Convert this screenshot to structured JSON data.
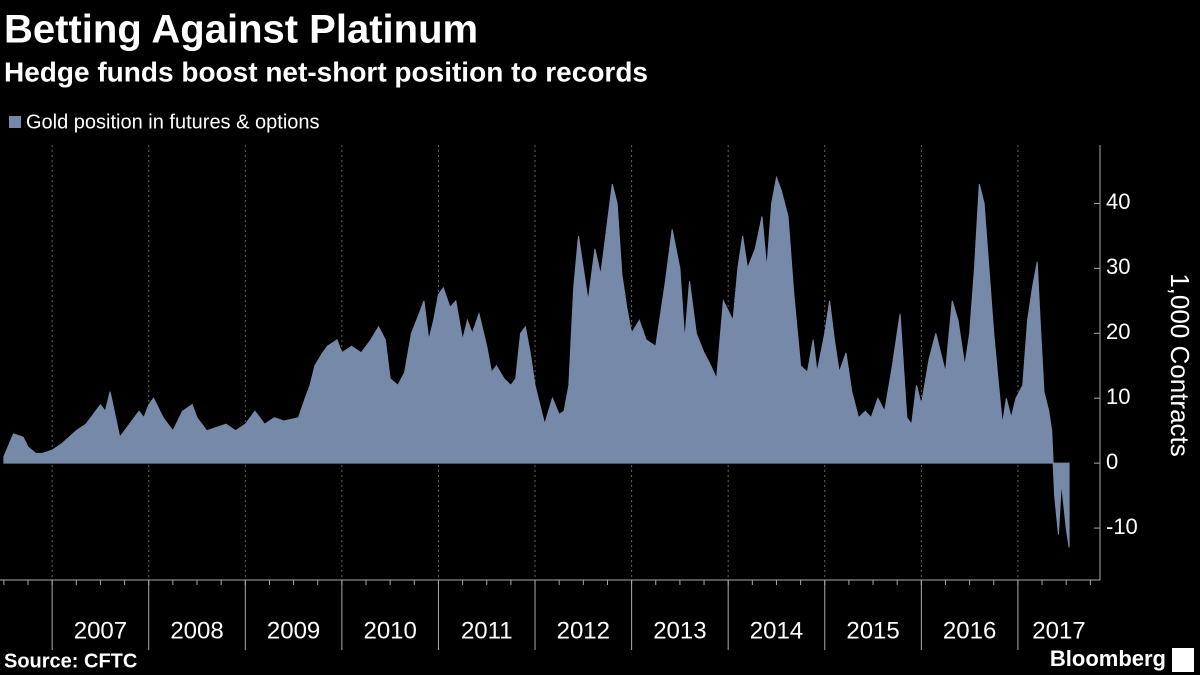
{
  "chart_data": {
    "type": "area",
    "title": "Betting Against Platinum",
    "subtitle": "Hedge funds boost net-short position to records",
    "source": "Source: CFTC",
    "brand": "Bloomberg",
    "y_label": "1,000 Contracts",
    "x": [
      2006.5,
      2006.6,
      2006.7,
      2006.75,
      2006.83,
      2006.9,
      2007.0,
      2007.1,
      2007.25,
      2007.35,
      2007.45,
      2007.5,
      2007.55,
      2007.6,
      2007.7,
      2007.8,
      2007.9,
      2007.95,
      2008.0,
      2008.05,
      2008.15,
      2008.25,
      2008.35,
      2008.45,
      2008.5,
      2008.6,
      2008.7,
      2008.8,
      2008.9,
      2009.0,
      2009.1,
      2009.2,
      2009.3,
      2009.4,
      2009.55,
      2009.62,
      2009.67,
      2009.72,
      2009.8,
      2009.85,
      2009.95,
      2010.0,
      2010.1,
      2010.2,
      2010.3,
      2010.38,
      2010.45,
      2010.5,
      2010.58,
      2010.65,
      2010.72,
      2010.8,
      2010.85,
      2010.9,
      2010.95,
      2011.0,
      2011.05,
      2011.12,
      2011.18,
      2011.25,
      2011.3,
      2011.35,
      2011.42,
      2011.5,
      2011.55,
      2011.6,
      2011.68,
      2011.75,
      2011.8,
      2011.85,
      2011.9,
      2011.95,
      2012.0,
      2012.05,
      2012.1,
      2012.18,
      2012.25,
      2012.3,
      2012.35,
      2012.4,
      2012.45,
      2012.5,
      2012.55,
      2012.62,
      2012.68,
      2012.74,
      2012.8,
      2012.85,
      2012.9,
      2012.95,
      2013.0,
      2013.08,
      2013.15,
      2013.25,
      2013.35,
      2013.42,
      2013.5,
      2013.55,
      2013.6,
      2013.67,
      2013.75,
      2013.82,
      2013.88,
      2013.95,
      2014.05,
      2014.1,
      2014.15,
      2014.2,
      2014.28,
      2014.35,
      2014.4,
      2014.45,
      2014.5,
      2014.55,
      2014.62,
      2014.68,
      2014.75,
      2014.82,
      2014.88,
      2014.92,
      2015.0,
      2015.05,
      2015.1,
      2015.15,
      2015.22,
      2015.28,
      2015.35,
      2015.42,
      2015.48,
      2015.55,
      2015.62,
      2015.7,
      2015.78,
      2015.85,
      2015.9,
      2015.95,
      2016.0,
      2016.08,
      2016.15,
      2016.2,
      2016.25,
      2016.32,
      2016.38,
      2016.45,
      2016.5,
      2016.55,
      2016.6,
      2016.65,
      2016.7,
      2016.75,
      2016.8,
      2016.84,
      2016.88,
      2016.93,
      2016.98,
      2017.05,
      2017.1,
      2017.15,
      2017.2,
      2017.23,
      2017.27,
      2017.32,
      2017.35,
      2017.38,
      2017.42,
      2017.45,
      2017.5,
      2017.53
    ],
    "series": [
      {
        "name": "Gold position in futures & options",
        "color": "#7689a9",
        "values": [
          1,
          4.5,
          4,
          2.5,
          1.5,
          1.5,
          2,
          3,
          5,
          6,
          8,
          9,
          8,
          11,
          4,
          6,
          8,
          7,
          9,
          10,
          7,
          5,
          8,
          9,
          7,
          5,
          5.5,
          6,
          5,
          6,
          8,
          6,
          7,
          6.5,
          7,
          10,
          12,
          15,
          17,
          18,
          19,
          17,
          18,
          17,
          19,
          21,
          19,
          13,
          12,
          14,
          20,
          23,
          25,
          19,
          22,
          26,
          27,
          24,
          25,
          19,
          22,
          20,
          23,
          18,
          14,
          15,
          13,
          12,
          13,
          20,
          21,
          17,
          12,
          9,
          6,
          10,
          7.5,
          8,
          12,
          27,
          35,
          30,
          25,
          33,
          29,
          36,
          43,
          40,
          29,
          24,
          20,
          22,
          19,
          18,
          28,
          36,
          30,
          19,
          28,
          20,
          17,
          15,
          13,
          25,
          22,
          30,
          35,
          30,
          33,
          38,
          30,
          40,
          44,
          42,
          38,
          26,
          15,
          14,
          19,
          14,
          20,
          25,
          19,
          14,
          17,
          11,
          7,
          8,
          7,
          10,
          8,
          15,
          23,
          7,
          6,
          12,
          9,
          16,
          20,
          17,
          14,
          25,
          22,
          15,
          20,
          30,
          43,
          40,
          30,
          20,
          12,
          6,
          10,
          7,
          10,
          12,
          22,
          27,
          31,
          22,
          11,
          8,
          5,
          -5,
          -11,
          -3,
          -10,
          -13
        ]
      }
    ],
    "xlim": [
      2006.46,
      2017.85
    ],
    "xticks": [
      2007,
      2008,
      2009,
      2010,
      2011,
      2012,
      2013,
      2014,
      2015,
      2016,
      2017
    ],
    "ylim": [
      -18,
      49
    ],
    "yticks": [
      -10,
      0,
      10,
      20,
      30,
      40
    ],
    "grid": true
  }
}
